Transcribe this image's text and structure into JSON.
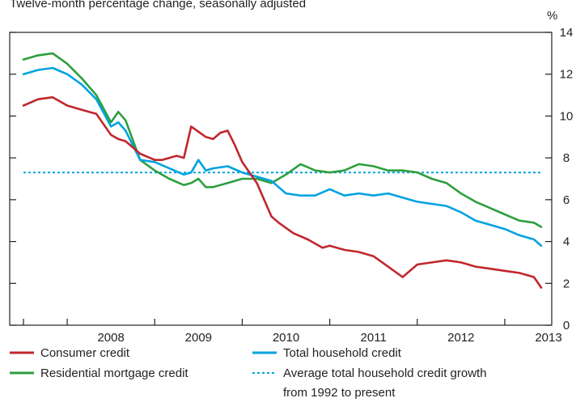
{
  "chart_data": {
    "type": "line",
    "subtitle": "Twelve-month percentage change, seasonally adjusted",
    "y_unit": "%",
    "ylim": [
      0,
      14
    ],
    "yticks": [
      0,
      2,
      4,
      6,
      8,
      10,
      12,
      14
    ],
    "x_range": [
      "2007-07",
      "2013-06"
    ],
    "x_tick_labels": [
      "2008",
      "2009",
      "2010",
      "2011",
      "2012",
      "2013"
    ],
    "grid": false,
    "legend_position": "bottom",
    "series": [
      {
        "name": "Consumer credit",
        "color": "#c0272d",
        "style": "solid",
        "x": [
          "2007-07",
          "2007-09",
          "2007-11",
          "2008-01",
          "2008-03",
          "2008-05",
          "2008-07",
          "2008-08",
          "2008-09",
          "2008-11",
          "2009-01",
          "2009-02",
          "2009-04",
          "2009-05",
          "2009-06",
          "2009-08",
          "2009-09",
          "2009-10",
          "2009-11",
          "2009-12",
          "2010-01",
          "2010-02",
          "2010-03",
          "2010-05",
          "2010-06",
          "2010-08",
          "2010-10",
          "2010-12",
          "2011-01",
          "2011-03",
          "2011-05",
          "2011-07",
          "2011-09",
          "2011-11",
          "2012-01",
          "2012-03",
          "2012-05",
          "2012-07",
          "2012-09",
          "2012-11",
          "2013-01",
          "2013-03",
          "2013-05",
          "2013-06"
        ],
        "values": [
          10.5,
          10.8,
          10.9,
          10.5,
          10.3,
          10.1,
          9.1,
          8.9,
          8.8,
          8.2,
          7.9,
          7.9,
          8.1,
          8.0,
          9.5,
          9.0,
          8.9,
          9.2,
          9.3,
          8.6,
          7.8,
          7.3,
          6.8,
          5.2,
          4.9,
          4.4,
          4.1,
          3.7,
          3.8,
          3.6,
          3.5,
          3.3,
          2.8,
          2.3,
          2.9,
          3.0,
          3.1,
          3.0,
          2.8,
          2.7,
          2.6,
          2.5,
          2.3,
          1.8
        ]
      },
      {
        "name": "Total household credit",
        "color": "#00a3e0",
        "style": "solid",
        "x": [
          "2007-07",
          "2007-09",
          "2007-11",
          "2008-01",
          "2008-03",
          "2008-05",
          "2008-07",
          "2008-08",
          "2008-09",
          "2008-11",
          "2009-01",
          "2009-03",
          "2009-05",
          "2009-06",
          "2009-07",
          "2009-08",
          "2009-09",
          "2009-11",
          "2010-01",
          "2010-03",
          "2010-05",
          "2010-07",
          "2010-09",
          "2010-11",
          "2011-01",
          "2011-03",
          "2011-05",
          "2011-07",
          "2011-09",
          "2011-11",
          "2012-01",
          "2012-03",
          "2012-05",
          "2012-07",
          "2012-09",
          "2012-11",
          "2013-01",
          "2013-03",
          "2013-05",
          "2013-06"
        ],
        "values": [
          12.0,
          12.2,
          12.3,
          12.0,
          11.5,
          10.8,
          9.5,
          9.7,
          9.3,
          7.9,
          7.8,
          7.5,
          7.2,
          7.3,
          7.9,
          7.4,
          7.5,
          7.6,
          7.3,
          7.1,
          6.9,
          6.3,
          6.2,
          6.2,
          6.5,
          6.2,
          6.3,
          6.2,
          6.3,
          6.1,
          5.9,
          5.8,
          5.7,
          5.4,
          5.0,
          4.8,
          4.6,
          4.3,
          4.1,
          3.8
        ]
      },
      {
        "name": "Residential mortgage credit",
        "color": "#2e9f3e",
        "style": "solid",
        "x": [
          "2007-07",
          "2007-09",
          "2007-11",
          "2008-01",
          "2008-03",
          "2008-05",
          "2008-07",
          "2008-08",
          "2008-09",
          "2008-11",
          "2009-01",
          "2009-03",
          "2009-05",
          "2009-06",
          "2009-07",
          "2009-08",
          "2009-09",
          "2009-11",
          "2010-01",
          "2010-03",
          "2010-05",
          "2010-07",
          "2010-09",
          "2010-11",
          "2011-01",
          "2011-03",
          "2011-05",
          "2011-07",
          "2011-09",
          "2011-11",
          "2012-01",
          "2012-03",
          "2012-05",
          "2012-07",
          "2012-09",
          "2012-11",
          "2013-01",
          "2013-03",
          "2013-05",
          "2013-06"
        ],
        "values": [
          12.7,
          12.9,
          13.0,
          12.5,
          11.8,
          11.0,
          9.7,
          10.2,
          9.8,
          7.9,
          7.4,
          7.0,
          6.7,
          6.8,
          7.0,
          6.6,
          6.6,
          6.8,
          7.0,
          7.0,
          6.8,
          7.2,
          7.7,
          7.4,
          7.3,
          7.4,
          7.7,
          7.6,
          7.4,
          7.4,
          7.3,
          7.0,
          6.8,
          6.3,
          5.9,
          5.6,
          5.3,
          5.0,
          4.9,
          4.7
        ]
      },
      {
        "name": "Average total household credit growth from 1992 to present",
        "color": "#00a3e0",
        "style": "dotted",
        "x": [
          "2007-07",
          "2013-06"
        ],
        "values": [
          7.3,
          7.3
        ]
      }
    ]
  }
}
